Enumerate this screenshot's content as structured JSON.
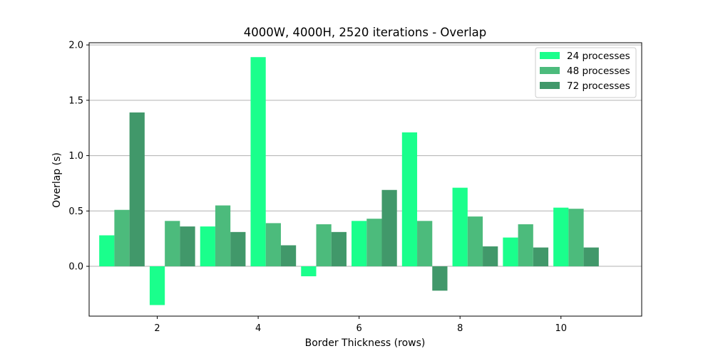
{
  "chart_data": {
    "type": "bar",
    "title": "4000W, 4000H, 2520 iterations - Overlap",
    "xlabel": "Border Thickness (rows)",
    "ylabel": "Overlap (s)",
    "x": [
      1,
      2,
      3,
      4,
      5,
      6,
      7,
      8,
      9,
      10
    ],
    "xticks": [
      2,
      4,
      6,
      8,
      10
    ],
    "yticks": [
      "0.0",
      "0.5",
      "1.0",
      "1.5",
      "2.0"
    ],
    "xlim": [
      0.65,
      11.6
    ],
    "ylim": [
      -0.45,
      2.02
    ],
    "grid": "y-major",
    "legend_position": "top-right",
    "series": [
      {
        "name": "24 processes",
        "color": "#1aff8c",
        "values": [
          0.28,
          -0.35,
          0.36,
          1.89,
          -0.09,
          0.41,
          1.21,
          0.71,
          0.26,
          0.53
        ]
      },
      {
        "name": "48 processes",
        "color": "#4cbb7c",
        "values": [
          0.51,
          0.41,
          0.55,
          0.39,
          0.38,
          0.43,
          0.41,
          0.45,
          0.38,
          0.52
        ]
      },
      {
        "name": "72 processes",
        "color": "#41986a",
        "values": [
          1.39,
          0.36,
          0.31,
          0.19,
          0.31,
          0.69,
          -0.22,
          0.18,
          0.17,
          0.17
        ]
      }
    ]
  }
}
